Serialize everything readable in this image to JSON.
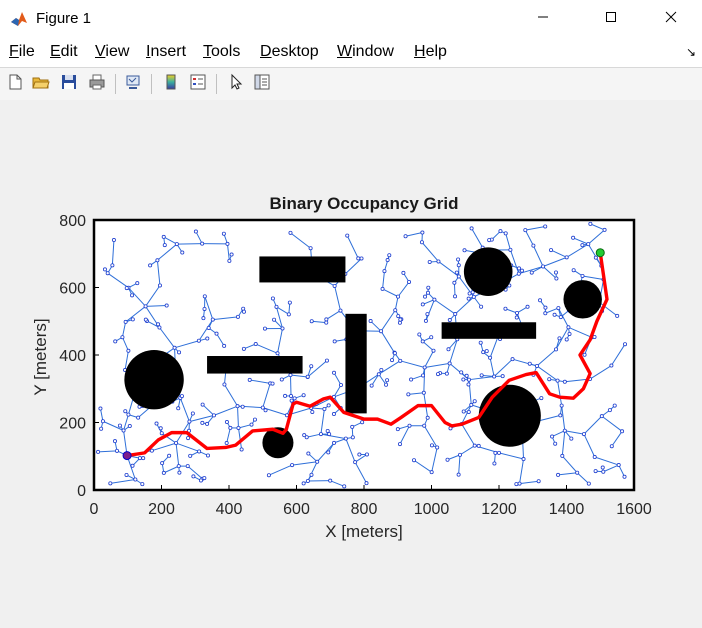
{
  "window": {
    "title": "Figure 1",
    "minimize_icon": "minimize-icon",
    "maximize_icon": "maximize-icon",
    "close_icon": "close-icon"
  },
  "menu": {
    "items": [
      {
        "mnemonic": "F",
        "rest": "ile"
      },
      {
        "mnemonic": "E",
        "rest": "dit"
      },
      {
        "mnemonic": "V",
        "rest": "iew"
      },
      {
        "mnemonic": "I",
        "rest": "nsert"
      },
      {
        "mnemonic": "T",
        "rest": "ools"
      },
      {
        "mnemonic": "D",
        "rest": "esktop"
      },
      {
        "mnemonic": "W",
        "rest": "indow"
      },
      {
        "mnemonic": "H",
        "rest": "elp"
      }
    ],
    "dock_arrow": "↘"
  },
  "toolbar": {
    "icons": [
      "new-figure-icon",
      "open-file-icon",
      "save-icon",
      "print-icon",
      "link-plot-icon",
      "insert-colorbar-icon",
      "insert-legend-icon",
      "edit-plot-icon",
      "property-inspector-icon"
    ]
  },
  "colors": {
    "path": "#ff0000",
    "tree": "#2e6fd8",
    "node": "#1f3fd0",
    "obstacle": "#000000",
    "start": "#7b1e8c",
    "goal": "#22cc33"
  },
  "chart_data": {
    "type": "scatter",
    "title": "Binary Occupancy Grid",
    "xlabel": "X [meters]",
    "ylabel": "Y [meters]",
    "xlim": [
      0,
      1600
    ],
    "ylim": [
      0,
      800
    ],
    "xticks": [
      0,
      200,
      400,
      600,
      800,
      1000,
      1200,
      1400,
      1600
    ],
    "yticks": [
      0,
      200,
      400,
      600,
      800
    ],
    "grid": false,
    "obstacles": {
      "rectangles": [
        {
          "x0": 490,
          "x1": 745,
          "y0": 615,
          "y1": 692
        },
        {
          "x0": 335,
          "x1": 618,
          "y0": 345,
          "y1": 397
        },
        {
          "x0": 745,
          "x1": 808,
          "y0": 227,
          "y1": 522
        },
        {
          "x0": 1030,
          "x1": 1310,
          "y0": 448,
          "y1": 497
        }
      ],
      "circles": [
        {
          "cx": 178,
          "cy": 327,
          "r": 88
        },
        {
          "cx": 545,
          "cy": 140,
          "r": 46
        },
        {
          "cx": 1168,
          "cy": 647,
          "r": 72
        },
        {
          "cx": 1448,
          "cy": 565,
          "r": 57
        },
        {
          "cx": 1232,
          "cy": 220,
          "r": 92
        }
      ]
    },
    "start": {
      "x": 98,
      "y": 102
    },
    "goal": {
      "x": 1500,
      "y": 703
    },
    "path": {
      "x": [
        98,
        150,
        190,
        230,
        275,
        335,
        390,
        420,
        470,
        530,
        560,
        570,
        590,
        600,
        640,
        680,
        700,
        740,
        800,
        840,
        880,
        910,
        960,
        1000,
        1040,
        1060,
        1090,
        1140,
        1180,
        1230,
        1280,
        1310,
        1350,
        1380,
        1420,
        1450,
        1470,
        1440,
        1470,
        1490,
        1520,
        1500
      ],
      "y": [
        102,
        110,
        148,
        170,
        170,
        123,
        126,
        133,
        175,
        180,
        168,
        180,
        255,
        260,
        248,
        270,
        275,
        230,
        210,
        210,
        195,
        215,
        250,
        250,
        200,
        190,
        195,
        215,
        275,
        325,
        342,
        348,
        285,
        275,
        272,
        300,
        345,
        400,
        445,
        500,
        565,
        703
      ]
    }
  }
}
